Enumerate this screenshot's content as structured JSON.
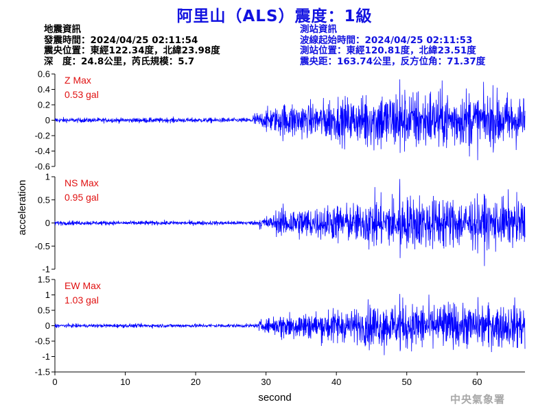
{
  "title": "阿里山（ALS）震度：1級",
  "earthquake_info": {
    "heading": "地震資訊",
    "time": "發震時間：2024/04/25 02:11:54",
    "epicenter": "震央位置：東經122.34度，北緯23.98度",
    "depth_magnitude": "深　度：24.8公里，芮氏規模：5.7"
  },
  "station_info": {
    "heading": "測站資訊",
    "wave_start": "波線起始時間：2024/04/25 02:11:53",
    "location": "測站位置：東經120.81度，北緯23.51度",
    "distance_azimuth": "震央距：163.74公里，反方位角：71.37度"
  },
  "credit": "中央氣象署",
  "colors": {
    "title": "#1212e0",
    "trace": "#0000ff",
    "max_label": "#e01010",
    "axis": "#000000",
    "credit": "#a8a8a8"
  },
  "chart_data": {
    "type": "line",
    "xlabel": "second",
    "ylabel": "acceleration",
    "xlim": [
      0,
      66.8
    ],
    "x_ticks": [
      0,
      10,
      20,
      30,
      40,
      50,
      60
    ],
    "p_wave_arrival_s": 28,
    "peak_time_s": 49,
    "panels": [
      {
        "component": "Z",
        "max_label": "Z Max",
        "max_value": "0.53 gal",
        "peak": 0.53,
        "ylim": [
          -0.6,
          0.6
        ],
        "ticks": [
          -0.6,
          -0.4,
          -0.2,
          0,
          0.2,
          0.4,
          0.6
        ],
        "tick_labels": [
          "-0.6",
          "-0.4",
          "-0.2",
          "0",
          "0.2",
          "0.4",
          "0.6"
        ]
      },
      {
        "component": "NS",
        "max_label": "NS Max",
        "max_value": "0.95 gal",
        "peak": 0.95,
        "ylim": [
          -1,
          1
        ],
        "ticks": [
          -1,
          -0.5,
          0,
          0.5,
          1
        ],
        "tick_labels": [
          "-1",
          "-0.5",
          "0",
          "0.5",
          "1"
        ]
      },
      {
        "component": "EW",
        "max_label": "EW Max",
        "max_value": "1.03 gal",
        "peak": 1.03,
        "ylim": [
          -1.5,
          1.5
        ],
        "ticks": [
          -1.5,
          -1,
          -0.5,
          0,
          0.5,
          1,
          1.5
        ],
        "tick_labels": [
          "-1.5",
          "-1",
          "-0.5",
          "0",
          "0.5",
          "1",
          "1.5"
        ]
      }
    ]
  }
}
